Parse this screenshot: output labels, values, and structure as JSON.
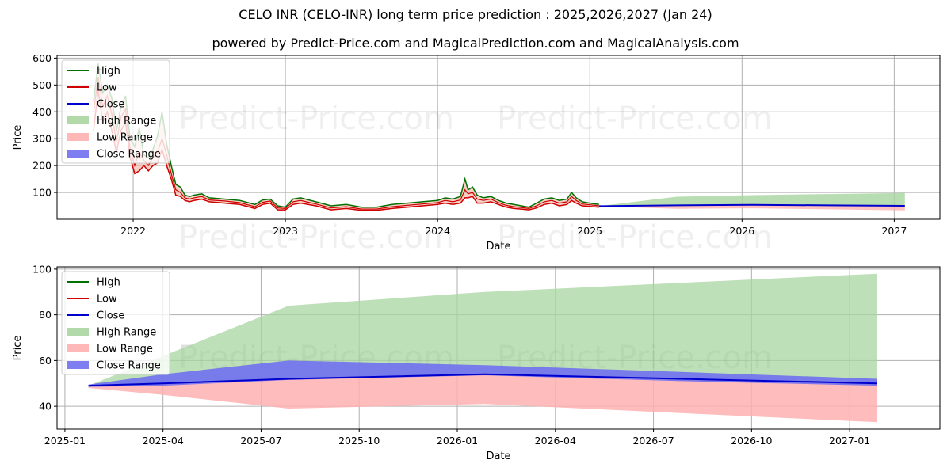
{
  "title": "CELO INR (CELO-INR) long term price prediction : 2025,2026,2027 (Jan 24)",
  "subtitle": "powered by Predict-Price.com and MagicalPrediction.com and MagicalAnalysis.com",
  "watermark": "Predict-Price.com",
  "colors": {
    "high": "#007000",
    "low": "#d00000",
    "close": "#0000cc",
    "high_range": "#a8d5a0",
    "low_range": "#ffb0b0",
    "close_range": "#7070f0"
  },
  "legend": [
    "High",
    "Low",
    "Close",
    "High Range",
    "Low Range",
    "Close Range"
  ],
  "chart_data": [
    {
      "type": "line",
      "name": "history",
      "xlabel": "Date",
      "ylabel": "Price",
      "xlim": [
        2021.5,
        2027.3
      ],
      "ylim": [
        0,
        610
      ],
      "x_ticks": [
        2022,
        2023,
        2024,
        2025,
        2026,
        2027
      ],
      "x_tick_labels": [
        "2022",
        "2023",
        "2024",
        "2025",
        "2026",
        "2027"
      ],
      "y_ticks": [
        100,
        200,
        300,
        400,
        500,
        600
      ],
      "y_tick_labels": [
        "100",
        "200",
        "300",
        "400",
        "500",
        "600"
      ],
      "x": [
        2021.74,
        2021.77,
        2021.8,
        2021.83,
        2021.86,
        2021.89,
        2021.92,
        2021.95,
        2021.98,
        2022.01,
        2022.04,
        2022.07,
        2022.1,
        2022.13,
        2022.16,
        2022.19,
        2022.22,
        2022.25,
        2022.28,
        2022.31,
        2022.34,
        2022.37,
        2022.4,
        2022.45,
        2022.5,
        2022.6,
        2022.7,
        2022.8,
        2022.85,
        2022.9,
        2022.95,
        2023.0,
        2023.05,
        2023.1,
        2023.2,
        2023.3,
        2023.4,
        2023.5,
        2023.6,
        2023.7,
        2023.8,
        2023.9,
        2024.0,
        2024.05,
        2024.1,
        2024.15,
        2024.18,
        2024.2,
        2024.23,
        2024.26,
        2024.3,
        2024.35,
        2024.4,
        2024.45,
        2024.5,
        2024.55,
        2024.6,
        2024.65,
        2024.7,
        2024.75,
        2024.8,
        2024.85,
        2024.88,
        2024.91,
        2024.95,
        2025.0,
        2025.06
      ],
      "high": [
        440,
        580,
        470,
        500,
        450,
        330,
        420,
        460,
        300,
        270,
        340,
        240,
        230,
        260,
        310,
        400,
        280,
        200,
        130,
        120,
        90,
        85,
        90,
        95,
        80,
        75,
        70,
        55,
        72,
        75,
        50,
        45,
        75,
        80,
        65,
        50,
        55,
        45,
        45,
        55,
        60,
        65,
        70,
        80,
        75,
        85,
        150,
        110,
        120,
        90,
        80,
        85,
        70,
        60,
        55,
        50,
        45,
        60,
        75,
        80,
        70,
        75,
        100,
        80,
        65,
        60,
        55
      ],
      "low": [
        330,
        480,
        360,
        400,
        330,
        250,
        330,
        360,
        230,
        170,
        180,
        200,
        180,
        200,
        210,
        260,
        200,
        150,
        90,
        85,
        70,
        65,
        70,
        75,
        65,
        60,
        55,
        40,
        55,
        60,
        35,
        35,
        55,
        60,
        50,
        35,
        40,
        33,
        33,
        40,
        45,
        50,
        55,
        60,
        55,
        60,
        80,
        80,
        85,
        60,
        60,
        65,
        55,
        45,
        40,
        38,
        35,
        42,
        55,
        60,
        50,
        55,
        70,
        60,
        50,
        48,
        45
      ],
      "close": [
        400,
        530,
        420,
        460,
        390,
        290,
        380,
        410,
        260,
        200,
        250,
        220,
        200,
        230,
        250,
        300,
        240,
        170,
        110,
        100,
        80,
        75,
        80,
        85,
        72,
        68,
        62,
        47,
        63,
        68,
        42,
        40,
        65,
        70,
        57,
        42,
        47,
        38,
        38,
        47,
        52,
        57,
        62,
        70,
        65,
        72,
        110,
        95,
        100,
        75,
        70,
        75,
        62,
        52,
        47,
        44,
        40,
        50,
        65,
        70,
        60,
        65,
        85,
        70,
        57,
        54,
        50
      ],
      "forecast_x": [
        2025.06,
        2025.25,
        2025.57,
        2026.07,
        2026.57,
        2027.07
      ],
      "forecast_high_upper": [
        49,
        62,
        84,
        90,
        94,
        98
      ],
      "forecast_low_lower": [
        48,
        45,
        39,
        41,
        37,
        33
      ],
      "forecast_close": [
        49,
        50,
        52,
        54,
        52,
        50
      ]
    },
    {
      "type": "area",
      "name": "forecast",
      "xlabel": "Date",
      "ylabel": "Price",
      "xlim": [
        2024.98,
        2027.23
      ],
      "ylim": [
        30,
        101
      ],
      "x_ticks": [
        2025.0,
        2025.25,
        2025.5,
        2025.75,
        2026.0,
        2026.25,
        2026.5,
        2026.75,
        2027.0
      ],
      "x_tick_labels": [
        "2025-01",
        "2025-04",
        "2025-07",
        "2025-10",
        "2026-01",
        "2026-04",
        "2026-07",
        "2026-10",
        "2027-01"
      ],
      "y_ticks": [
        40,
        60,
        80,
        100
      ],
      "y_tick_labels": [
        "40",
        "60",
        "80",
        "100"
      ],
      "x": [
        2025.06,
        2025.25,
        2025.57,
        2026.07,
        2026.57,
        2027.07
      ],
      "high_range_upper": [
        49,
        62,
        84,
        90,
        94,
        98
      ],
      "low_range_lower": [
        48,
        45,
        39,
        41,
        37,
        33
      ],
      "close_range_upper": [
        49.5,
        54,
        60,
        58,
        55,
        52
      ],
      "close_range_lower": [
        48.5,
        49,
        51.5,
        53.5,
        51,
        49
      ],
      "close": [
        49,
        50,
        52,
        54,
        52,
        50
      ]
    }
  ]
}
